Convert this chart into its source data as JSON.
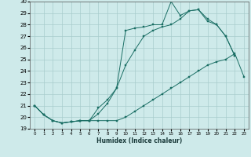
{
  "xlabel": "Humidex (Indice chaleur)",
  "background_color": "#ceeaea",
  "grid_color": "#a8cccc",
  "line_color": "#1a6e64",
  "xlim": [
    -0.5,
    23.5
  ],
  "ylim": [
    19,
    30
  ],
  "xticks": [
    0,
    1,
    2,
    3,
    4,
    5,
    6,
    7,
    8,
    9,
    10,
    11,
    12,
    13,
    14,
    15,
    16,
    17,
    18,
    19,
    20,
    21,
    22,
    23
  ],
  "yticks": [
    19,
    20,
    21,
    22,
    23,
    24,
    25,
    26,
    27,
    28,
    29,
    30
  ],
  "series1_x": [
    0,
    1,
    2,
    3,
    4,
    5,
    6,
    7,
    8,
    9,
    10,
    11,
    12,
    13,
    14,
    15,
    16,
    17,
    18,
    19,
    20,
    21,
    22,
    23
  ],
  "series1_y": [
    21.0,
    20.2,
    19.7,
    19.5,
    19.6,
    19.7,
    19.7,
    19.7,
    19.7,
    19.7,
    20.0,
    20.5,
    21.0,
    21.5,
    22.0,
    22.5,
    23.0,
    23.5,
    24.0,
    24.5,
    24.8,
    25.0,
    25.5,
    23.5
  ],
  "series2_x": [
    0,
    1,
    2,
    3,
    4,
    5,
    6,
    7,
    8,
    9,
    10,
    11,
    12,
    13,
    14,
    15,
    16,
    17,
    18,
    19,
    20,
    21,
    22
  ],
  "series2_y": [
    21.0,
    20.2,
    19.7,
    19.5,
    19.6,
    19.7,
    19.7,
    20.8,
    21.5,
    22.5,
    27.5,
    27.7,
    27.8,
    28.0,
    28.0,
    30.0,
    28.8,
    29.2,
    29.3,
    28.5,
    28.0,
    27.0,
    25.3
  ],
  "series3_x": [
    0,
    1,
    2,
    3,
    4,
    5,
    6,
    7,
    8,
    9,
    10,
    11,
    12,
    13,
    14,
    15,
    16,
    17,
    18,
    19,
    20,
    21,
    22
  ],
  "series3_y": [
    21.0,
    20.2,
    19.7,
    19.5,
    19.6,
    19.7,
    19.7,
    20.3,
    21.2,
    22.5,
    24.5,
    25.8,
    27.0,
    27.5,
    27.8,
    28.0,
    28.5,
    29.2,
    29.3,
    28.3,
    28.0,
    27.0,
    25.3
  ]
}
